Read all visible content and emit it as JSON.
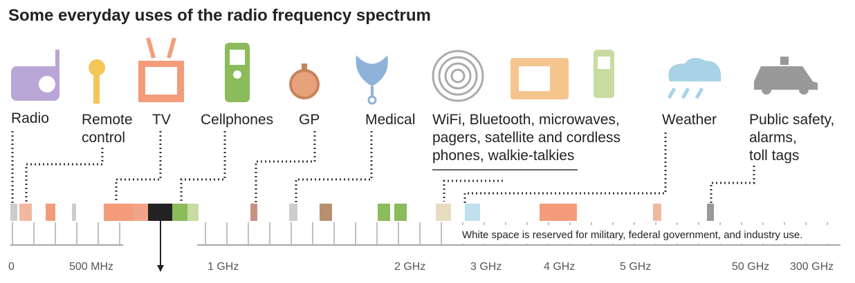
{
  "title": "Some everyday uses of the radio frequency spectrum",
  "uses": [
    {
      "lines": [
        "Radio"
      ]
    },
    {
      "lines": [
        "Remote",
        "control"
      ]
    },
    {
      "lines": [
        "TV"
      ]
    },
    {
      "lines": [
        "Cellphones"
      ]
    },
    {
      "lines": [
        "GP"
      ]
    },
    {
      "lines": [
        "Medical"
      ]
    },
    {
      "lines": [
        "WiFi, Bluetooth, microwaves,",
        "pagers, satellite and cordless",
        "phones, walkie-talkies"
      ]
    },
    {
      "lines": [
        "Weather"
      ]
    },
    {
      "lines": [
        "Public safety,",
        "alarms,",
        "toll tags"
      ]
    }
  ],
  "axis_labels": [
    "0",
    "500 MHz",
    "1 GHz",
    "2 GHz",
    "3 GHz",
    "4 GHz",
    "5 GHz",
    "50 GHz",
    "300 GHz"
  ],
  "note": "White space is reserved for military, federal government, and industry use."
}
